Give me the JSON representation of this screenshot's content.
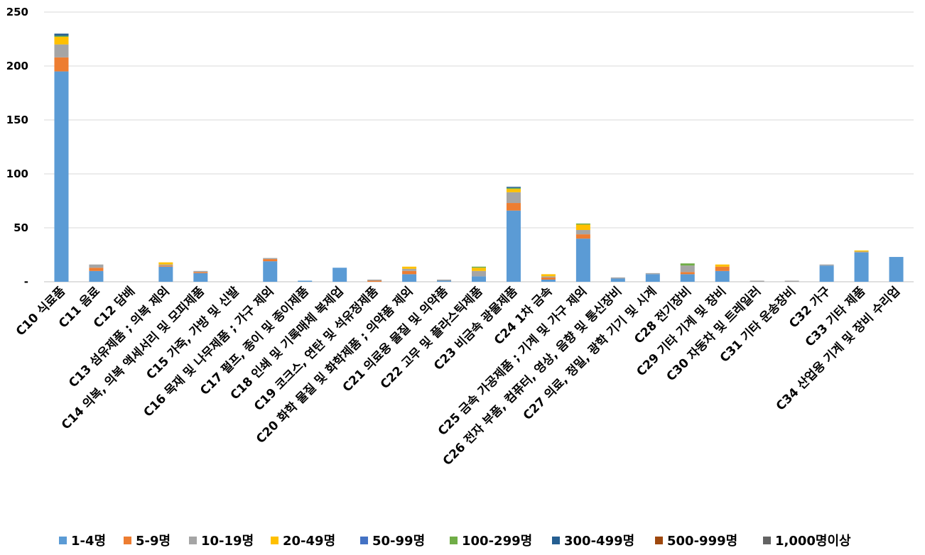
{
  "chart_data": {
    "type": "bar",
    "stacked": true,
    "categories": [
      "C10 식료품",
      "C11 음료",
      "C12 담배",
      "C13 섬유제품 ; 의복 제외",
      "C14 의복, 의복 액세서리 및 모피제품",
      "C15 가죽, 가방 및 신발",
      "C16 목재 및 나무제품 ; 가구 제외",
      "C17 펄프, 종이 및 종이제품",
      "C18 인쇄 및 기록매체 복제업",
      "C19 코크스, 연탄 및 석유정제품",
      "C20 화학 물질 및 화학제품 ; 의약품 제외",
      "C21 의료용 물질 및 의약품",
      "C22 고무 및 플라스틱제품",
      "C23 비금속 광물제품",
      "C24 1차 금속",
      "C25 금속 가공제품 ; 기계 및 가구 제외",
      "C26 전자 부품, 컴퓨터, 영상, 음향 및 통신장비",
      "C27 의료, 정밀, 광학 기기 및 시계",
      "C28 전기장비",
      "C29 기타 기계 및 장비",
      "C30 자동차 및 트레일러",
      "C31 기타 운송장비",
      "C32 가구",
      "C33 기타 제품",
      "C34 산업용 기계 및 장비 수리업"
    ],
    "series": [
      {
        "name": "1-4명",
        "color": "#5b9bd5",
        "values": [
          195,
          10,
          0,
          14,
          8,
          0,
          19,
          1,
          13,
          0,
          7,
          1,
          5,
          66,
          2,
          40,
          3,
          7,
          7,
          10,
          0,
          0,
          15,
          27,
          23
        ]
      },
      {
        "name": "5-9명",
        "color": "#ed7d31",
        "values": [
          13,
          3,
          0,
          1,
          1,
          0,
          2,
          0,
          0,
          1,
          3,
          0,
          0,
          7,
          2,
          4,
          0,
          0,
          2,
          4,
          0,
          0,
          0,
          0,
          0
        ]
      },
      {
        "name": "10-19명",
        "color": "#a5a5a5",
        "values": [
          12,
          3,
          0,
          1,
          1,
          0,
          1,
          0,
          0,
          1,
          2,
          1,
          5,
          10,
          1,
          4,
          1,
          1,
          6,
          0,
          1,
          1,
          1,
          1,
          0
        ]
      },
      {
        "name": "20-49명",
        "color": "#ffc000",
        "values": [
          7,
          0,
          0,
          2,
          0,
          0,
          0,
          0,
          0,
          0,
          2,
          0,
          3,
          3,
          2,
          5,
          0,
          0,
          0,
          2,
          0,
          0,
          0,
          1,
          0
        ]
      },
      {
        "name": "50-99명",
        "color": "#4472c4",
        "values": [
          0,
          0,
          0,
          0,
          0,
          0,
          0,
          0,
          0,
          0,
          0,
          0,
          0,
          0,
          0,
          0,
          0,
          0,
          0,
          0,
          0,
          0,
          0,
          0,
          0
        ]
      },
      {
        "name": "100-299명",
        "color": "#70ad47",
        "values": [
          1,
          0,
          0,
          0,
          0,
          0,
          0,
          0,
          0,
          0,
          0,
          0,
          1,
          1,
          0,
          1,
          0,
          0,
          2,
          0,
          0,
          0,
          0,
          0,
          0
        ]
      },
      {
        "name": "300-499명",
        "color": "#255e91",
        "values": [
          2,
          0,
          0,
          0,
          0,
          0,
          0,
          0,
          0,
          0,
          0,
          0,
          0,
          1,
          0,
          0,
          0,
          0,
          0,
          0,
          0,
          0,
          0,
          0,
          0
        ]
      },
      {
        "name": "500-999명",
        "color": "#9e480e",
        "values": [
          0,
          0,
          0,
          0,
          0,
          0,
          0,
          0,
          0,
          0,
          0,
          0,
          0,
          0,
          0,
          0,
          0,
          0,
          0,
          0,
          0,
          0,
          0,
          0,
          0
        ]
      },
      {
        "name": "1,000명이상",
        "color": "#636363",
        "values": [
          0,
          0,
          0,
          0,
          0,
          0,
          0,
          0,
          0,
          0,
          0,
          0,
          0,
          0,
          0,
          0,
          0,
          0,
          0,
          0,
          0,
          0,
          0,
          0,
          0
        ]
      }
    ],
    "yticks": [
      0,
      50,
      100,
      150,
      200,
      250
    ],
    "ytick_labels": [
      "-",
      "50",
      "100",
      "150",
      "200",
      "250"
    ],
    "ylim": [
      0,
      250
    ],
    "grid": true,
    "legend_position": "bottom",
    "title": "",
    "xlabel": "",
    "ylabel": ""
  }
}
